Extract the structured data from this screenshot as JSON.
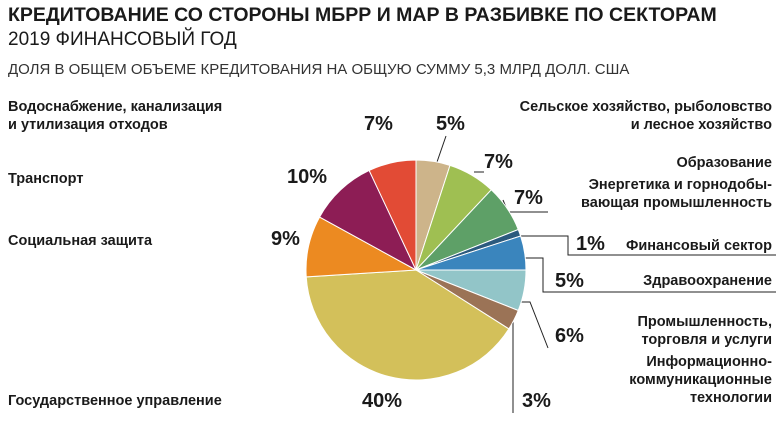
{
  "header": {
    "title": "КРЕДИТОВАНИЕ СО СТОРОНЫ МБРР И МАР В РАЗБИВКЕ ПО СЕКТОРАМ",
    "subtitle": "2019 ФИНАНСОВЫЙ ГОД",
    "caption": "ДОЛЯ В ОБЩЕМ ОБЪЕМЕ КРЕДИТОВАНИЯ НА ОБЩУЮ СУММУ 5,3 МЛРД ДОЛЛ. США"
  },
  "chart_data": {
    "type": "pie",
    "title": "КРЕДИТОВАНИЕ СО СТОРОНЫ МБРР И МАР В РАЗБИВКЕ ПО СЕКТОРАМ",
    "subtitle": "2019 ФИНАНСОВЫЙ ГОД",
    "unit": "%",
    "slices": [
      {
        "label": "Сельское хозяйство, рыболовство и лесное хозяйство",
        "label_lines": [
          "Сельское хозяйство, рыболовство",
          "и лесное хозяйство"
        ],
        "value": 5,
        "pct_label": "5%",
        "color": "#cdb48a"
      },
      {
        "label": "Образование",
        "label_lines": [
          "Образование"
        ],
        "value": 7,
        "pct_label": "7%",
        "color": "#9fbf52"
      },
      {
        "label": "Энергетика и горнодобывающая промышленность",
        "label_lines": [
          "Энергетика и горнодобы-",
          "вающая промышленность"
        ],
        "value": 7,
        "pct_label": "7%",
        "color": "#5ea067"
      },
      {
        "label": "Финансовый сектор",
        "label_lines": [
          "Финансовый сектор"
        ],
        "value": 1,
        "pct_label": "1%",
        "color": "#2b5a7e"
      },
      {
        "label": "Здравоохранение",
        "label_lines": [
          "Здравоохранение"
        ],
        "value": 5,
        "pct_label": "5%",
        "color": "#3a85bd"
      },
      {
        "label": "Промышленность, торговля и услуги",
        "label_lines": [
          "Промышленность,",
          "торговля и услуги"
        ],
        "value": 6,
        "pct_label": "6%",
        "color": "#92c5c8"
      },
      {
        "label": "Информационно-коммуникационные технологии",
        "label_lines": [
          "Информационно-",
          "коммуникационные",
          "технологии"
        ],
        "value": 3,
        "pct_label": "3%",
        "color": "#9b7356"
      },
      {
        "label": "Государственное управление",
        "label_lines": [
          "Государственное управление"
        ],
        "value": 40,
        "pct_label": "40%",
        "color": "#d3c05a"
      },
      {
        "label": "Социальная защита",
        "label_lines": [
          "Социальная защита"
        ],
        "value": 9,
        "pct_label": "9%",
        "color": "#ec8a21"
      },
      {
        "label": "Транспорт",
        "label_lines": [
          "Транспорт"
        ],
        "value": 10,
        "pct_label": "10%",
        "color": "#8d1d55"
      },
      {
        "label": "Водоснабжение, канализация и утилизация отходов",
        "label_lines": [
          "Водоснабжение, канализация",
          "и утилизация отходов"
        ],
        "value": 7,
        "pct_label": "7%",
        "color": "#e24b35"
      }
    ]
  }
}
